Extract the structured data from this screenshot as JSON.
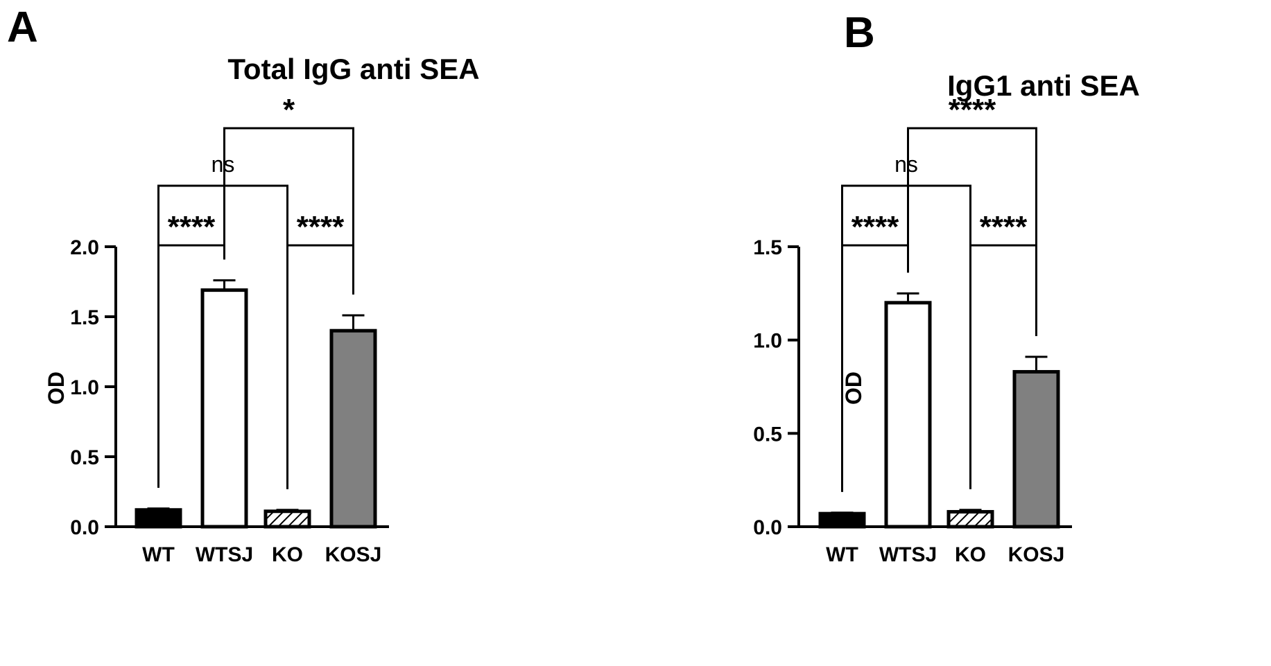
{
  "chart_data": [
    {
      "type": "bar",
      "panel": "A",
      "title": "Total IgG anti  SEA",
      "xlabel": "",
      "ylabel": "OD",
      "ylim": [
        0,
        2.0
      ],
      "yticks": [
        0.0,
        0.5,
        1.0,
        1.5,
        2.0
      ],
      "ytick_labels": [
        "0.0",
        "0.5",
        "1.0",
        "1.5",
        "2.0"
      ],
      "categories": [
        "WT",
        "WTSJ",
        "KO",
        "KOSJ"
      ],
      "values": [
        0.12,
        1.69,
        0.11,
        1.4
      ],
      "errors": [
        0.01,
        0.07,
        0.01,
        0.11
      ],
      "styles": [
        "black",
        "white",
        "hatched",
        "gray"
      ],
      "comparisons": [
        {
          "from": 0,
          "to": 1,
          "label": "****"
        },
        {
          "from": 2,
          "to": 3,
          "label": "****"
        },
        {
          "from": 0,
          "to": 2,
          "label": "ns"
        },
        {
          "from": 1,
          "to": 3,
          "label": "*"
        }
      ]
    },
    {
      "type": "bar",
      "panel": "B",
      "title": "IgG1 anti SEA",
      "xlabel": "",
      "ylabel": "OD",
      "ylim": [
        0,
        1.5
      ],
      "yticks": [
        0.0,
        0.5,
        1.0,
        1.5
      ],
      "ytick_labels": [
        "0.0",
        "0.5",
        "1.0",
        "1.5"
      ],
      "categories": [
        "WT",
        "WTSJ",
        "KO",
        "KOSJ"
      ],
      "values": [
        0.07,
        1.2,
        0.08,
        0.83
      ],
      "errors": [
        0.005,
        0.05,
        0.01,
        0.08
      ],
      "styles": [
        "black",
        "white",
        "hatched",
        "gray"
      ],
      "comparisons": [
        {
          "from": 0,
          "to": 1,
          "label": "****"
        },
        {
          "from": 2,
          "to": 3,
          "label": "****"
        },
        {
          "from": 0,
          "to": 2,
          "label": "ns"
        },
        {
          "from": 1,
          "to": 3,
          "label": "****"
        }
      ]
    }
  ],
  "colors": {
    "black": "#000000",
    "white": "#ffffff",
    "gray": "#808080"
  }
}
